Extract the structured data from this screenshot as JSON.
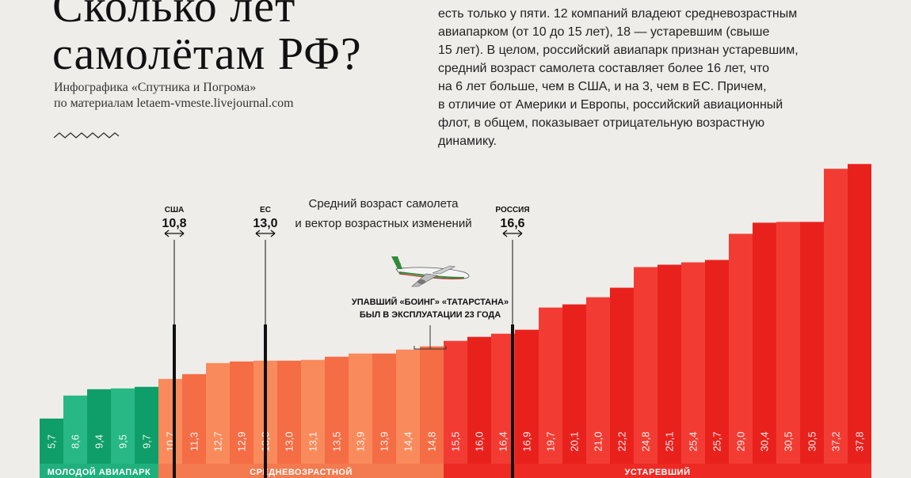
{
  "header": {
    "title_lines": [
      "Сколько лет",
      "самолётам РФ?"
    ],
    "subtitle_lines": [
      "Инфографика «Спутника и Погрома»",
      "по материалам letaem-vmeste.livejournal.com"
    ],
    "intro_lines": [
      "есть только у пяти. 12 компаний владеют средневозрастным",
      "авиапарком (от 10 до 15 лет), 18 — устаревшим (свыше",
      "15 лет). В целом, российский авиапарк признан устаревшим,",
      "средний возраст самолета составляет более 16 лет, что",
      "на 6 лет больше, чем в США, и на 3, чем в ЕС. Причем,",
      "в отличие от Америки и Европы, российский авиационный",
      "флот, в общем, показывает отрицательную возрастную",
      "динамику."
    ]
  },
  "chart_data": {
    "type": "bar",
    "title": "Средний возраст самолета и вектор возрастных изменений",
    "values": [
      5.7,
      8.6,
      9.4,
      9.5,
      9.7,
      10.7,
      11.3,
      12.7,
      12.9,
      13.0,
      13.0,
      13.1,
      13.5,
      13.9,
      13.9,
      14.4,
      14.8,
      15.5,
      16.0,
      16.4,
      16.9,
      19.7,
      20.1,
      21.0,
      22.2,
      24.8,
      25.1,
      25.4,
      25.7,
      29.0,
      30.4,
      30.5,
      30.5,
      37.2,
      37.8
    ],
    "value_labels": [
      "5,7",
      "8,6",
      "9,4",
      "9,5",
      "9,7",
      "10,7",
      "11,3",
      "12,7",
      "12,9",
      "13,0",
      "13,0",
      "13,1",
      "13,5",
      "13,9",
      "13,9",
      "14,4",
      "14,8",
      "15,5",
      "16,0",
      "16,4",
      "16,9",
      "19,7",
      "20,1",
      "21,0",
      "22,2",
      "24,8",
      "25,1",
      "25,4",
      "25,7",
      "29,0",
      "30,4",
      "30,5",
      "30,5",
      "37,2",
      "37,8"
    ],
    "groups": [
      {
        "label": "МОЛОДОЙ АВИАПАРК",
        "from": 0,
        "to": 4,
        "color": "#1fb07e"
      },
      {
        "label": "СРЕДНЕВОЗРАСТНОЙ",
        "from": 5,
        "to": 16,
        "color": "#f47a4f"
      },
      {
        "label": "УСТАРЕВШИЙ",
        "from": 17,
        "to": 34,
        "color": "#ee2a24"
      }
    ],
    "reference_lines": [
      {
        "label": "США",
        "value": 10.8,
        "value_label": "10,8"
      },
      {
        "label": "ЕС",
        "value": 13.0,
        "value_label": "13,0"
      },
      {
        "label": "РОССИЯ",
        "value": 16.6,
        "value_label": "16,6"
      }
    ],
    "annotation": {
      "lines": [
        "УПАВШИЙ «БОИНГ» «ТАТАРСТАНА»",
        "БЫЛ В ЭКСПЛУАТАЦИИ 23 ГОДА"
      ]
    },
    "ylim": [
      0,
      40
    ],
    "xlabel": "",
    "ylabel": ""
  }
}
